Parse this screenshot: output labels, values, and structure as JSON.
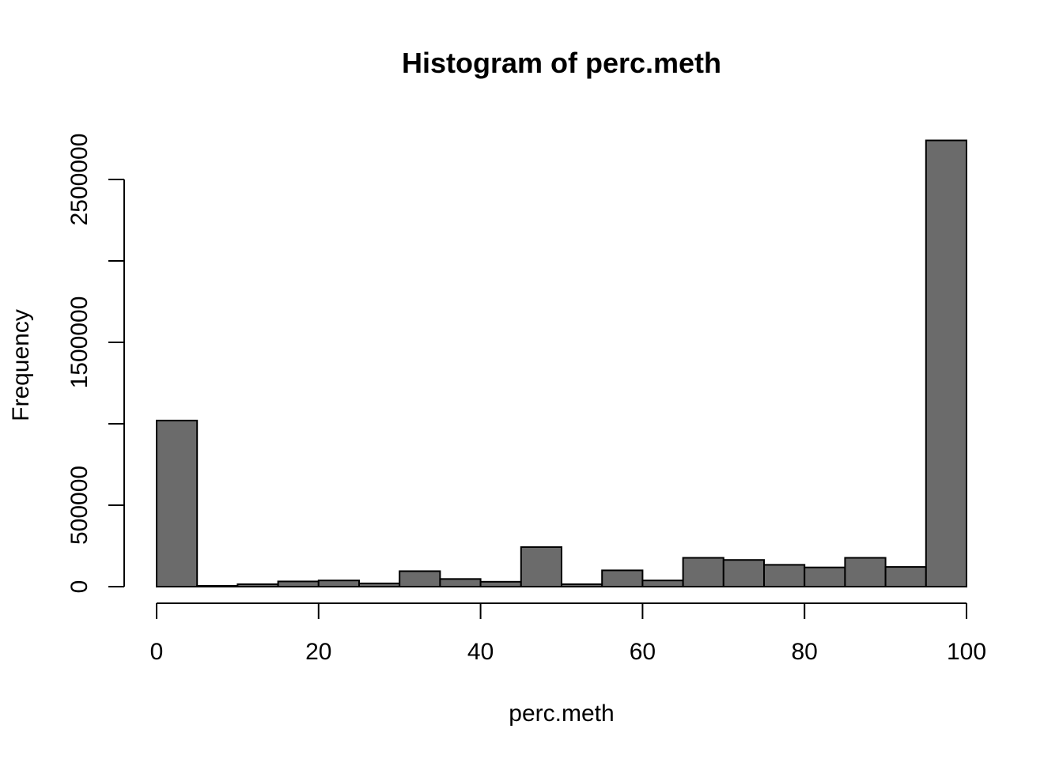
{
  "chart_data": {
    "type": "bar",
    "title": "Histogram of perc.meth",
    "xlabel": "perc.meth",
    "ylabel": "Frequency",
    "bar_color": "#6b6b6b",
    "border_color": "#000000",
    "background": "#ffffff",
    "grid": false,
    "legend": "none",
    "xlim": [
      0,
      100
    ],
    "ylim": [
      0,
      2500000
    ],
    "x_ticks": [
      {
        "value": 0,
        "label": "0"
      },
      {
        "value": 20,
        "label": "20"
      },
      {
        "value": 40,
        "label": "40"
      },
      {
        "value": 60,
        "label": "60"
      },
      {
        "value": 80,
        "label": "80"
      },
      {
        "value": 100,
        "label": "100"
      }
    ],
    "y_ticks": [
      {
        "value": 0,
        "label": "0"
      },
      {
        "value": 500000,
        "label": "500000"
      },
      {
        "value": 1000000,
        "label": ""
      },
      {
        "value": 1500000,
        "label": "1500000"
      },
      {
        "value": 2000000,
        "label": ""
      },
      {
        "value": 2500000,
        "label": "2500000"
      }
    ],
    "bins": [
      {
        "from": 0,
        "to": 5,
        "count": 1020000
      },
      {
        "from": 5,
        "to": 10,
        "count": 5000
      },
      {
        "from": 10,
        "to": 15,
        "count": 15000
      },
      {
        "from": 15,
        "to": 20,
        "count": 32000
      },
      {
        "from": 20,
        "to": 25,
        "count": 38000
      },
      {
        "from": 25,
        "to": 30,
        "count": 20000
      },
      {
        "from": 30,
        "to": 35,
        "count": 95000
      },
      {
        "from": 35,
        "to": 40,
        "count": 47000
      },
      {
        "from": 40,
        "to": 45,
        "count": 30000
      },
      {
        "from": 45,
        "to": 50,
        "count": 243000
      },
      {
        "from": 50,
        "to": 55,
        "count": 15000
      },
      {
        "from": 55,
        "to": 60,
        "count": 100000
      },
      {
        "from": 60,
        "to": 65,
        "count": 38000
      },
      {
        "from": 65,
        "to": 70,
        "count": 177000
      },
      {
        "from": 70,
        "to": 75,
        "count": 164000
      },
      {
        "from": 75,
        "to": 80,
        "count": 134000
      },
      {
        "from": 80,
        "to": 85,
        "count": 118000
      },
      {
        "from": 85,
        "to": 90,
        "count": 177000
      },
      {
        "from": 90,
        "to": 95,
        "count": 121000
      },
      {
        "from": 95,
        "to": 100,
        "count": 2740000
      }
    ]
  }
}
